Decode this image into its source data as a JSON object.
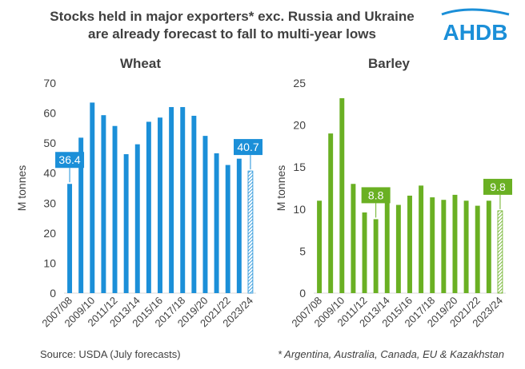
{
  "header": {
    "title_line1": "Stocks held in major exporters* exc. Russia and Ukraine",
    "title_line2": "are already forecast to fall to multi-year lows",
    "logo_text": "AHDB"
  },
  "footer": {
    "source": "Source: USDA (July forecasts)",
    "note": "* Argentina, Australia, Canada, EU & Kazakhstan"
  },
  "colors": {
    "wheat": "#1b8fd8",
    "barley": "#6ab023",
    "logo": "#1b8fd8",
    "axis": "#d9d9d9",
    "text": "#404040"
  },
  "chart_data": [
    {
      "type": "bar",
      "title": "Wheat",
      "ylabel": "M tonnes",
      "ylim": [
        0,
        70
      ],
      "yticks": [
        0,
        10,
        20,
        30,
        40,
        50,
        60,
        70
      ],
      "categories": [
        "2007/08",
        "2008/09",
        "2009/10",
        "2010/11",
        "2011/12",
        "2012/13",
        "2013/14",
        "2014/15",
        "2015/16",
        "2016/17",
        "2017/18",
        "2018/19",
        "2019/20",
        "2020/21",
        "2021/22",
        "2022/23",
        "2023/24"
      ],
      "xtick_labels": [
        "2007/08",
        "2009/10",
        "2011/12",
        "2013/14",
        "2015/16",
        "2017/18",
        "2019/20",
        "2021/22",
        "2023/24"
      ],
      "values": [
        36.4,
        51.8,
        63.5,
        59.3,
        55.7,
        46.3,
        49.6,
        57.1,
        58.5,
        62.0,
        62.0,
        59.1,
        52.4,
        46.6,
        42.7,
        44.8,
        40.7
      ],
      "forecast_index": 16,
      "annotations": [
        {
          "index": 0,
          "text": "36.4"
        },
        {
          "index": 16,
          "text": "40.7"
        }
      ],
      "grid": false
    },
    {
      "type": "bar",
      "title": "Barley",
      "ylabel": "M tonnes",
      "ylim": [
        0,
        25
      ],
      "yticks": [
        0,
        5,
        10,
        15,
        20,
        25
      ],
      "categories": [
        "2007/08",
        "2008/09",
        "2009/10",
        "2010/11",
        "2011/12",
        "2012/13",
        "2013/14",
        "2014/15",
        "2015/16",
        "2016/17",
        "2017/18",
        "2018/19",
        "2019/20",
        "2020/21",
        "2021/22",
        "2022/23",
        "2023/24"
      ],
      "xtick_labels": [
        "2007/08",
        "2009/10",
        "2011/12",
        "2013/14",
        "2015/16",
        "2017/18",
        "2019/20",
        "2021/22",
        "2023/24"
      ],
      "values": [
        11.0,
        19.0,
        23.2,
        13.0,
        9.6,
        8.8,
        10.9,
        10.5,
        11.6,
        12.8,
        11.4,
        11.1,
        11.7,
        11.0,
        10.4,
        11.0,
        9.8
      ],
      "forecast_index": 16,
      "annotations": [
        {
          "index": 5,
          "text": "8.8"
        },
        {
          "index": 16,
          "text": "9.8"
        }
      ],
      "grid": false
    }
  ]
}
